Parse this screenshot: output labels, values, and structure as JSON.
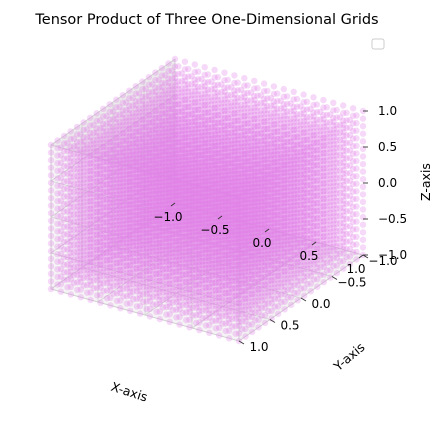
{
  "chart_data": {
    "type": "scatter",
    "projection": "3d",
    "title": "Tensor Product of Three One-Dimensional Grids",
    "xlabel": "X-axis",
    "ylabel": "Y-axis",
    "zlabel": "Z-axis",
    "xlim": [
      -1.0,
      1.0
    ],
    "ylim": [
      -1.0,
      1.0
    ],
    "zlim": [
      -1.0,
      1.0
    ],
    "x_ticks": [
      "−1.0",
      "−0.5",
      "0.0",
      "0.5",
      "1.0"
    ],
    "y_ticks": [
      "−1.0",
      "−0.5",
      "0.0",
      "0.5",
      "1.0"
    ],
    "z_ticks": [
      "−1.0",
      "−0.5",
      "0.0",
      "0.5",
      "1.0"
    ],
    "grid": true,
    "legend": "top-right",
    "legend_entries": [],
    "marker_color": "#e080e8",
    "marker_alpha": 0.3,
    "series": [
      {
        "x_grid": {
          "start": -1.0,
          "stop": 1.0,
          "num": 20
        },
        "y_grid": {
          "start": -1.0,
          "stop": 1.0,
          "num": 20
        },
        "z_grid": {
          "start": -1.0,
          "stop": 1.0,
          "num": 20
        }
      }
    ]
  }
}
